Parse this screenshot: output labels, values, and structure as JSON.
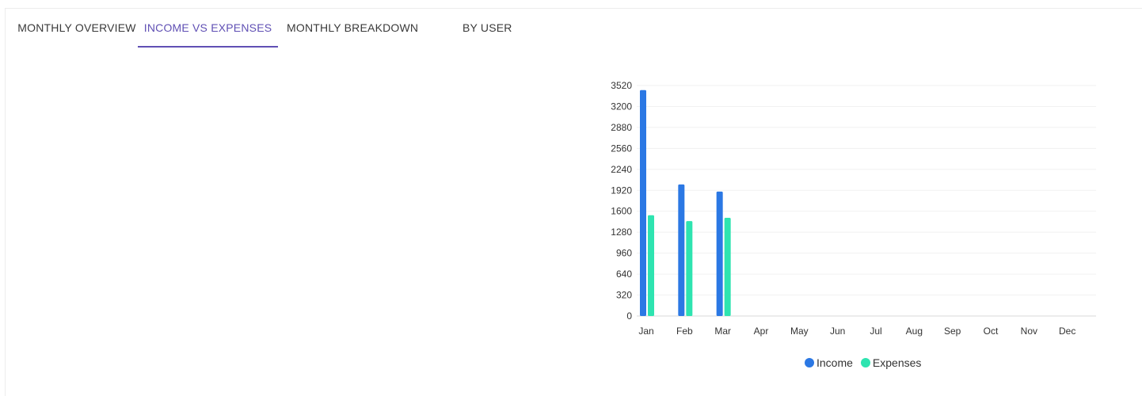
{
  "tabs": [
    {
      "label": "MONTHLY OVERVIEW",
      "active": false
    },
    {
      "label": "INCOME VS EXPENSES",
      "active": true
    },
    {
      "label": "MONTHLY BREAKDOWN",
      "active": false
    },
    {
      "label": "BY USER",
      "active": false
    }
  ],
  "colors": {
    "accent": "#6050b4",
    "income": "#2b78e4",
    "expenses": "#2ee4b0"
  },
  "chart_data": {
    "type": "bar",
    "categories": [
      "Jan",
      "Feb",
      "Mar",
      "Apr",
      "May",
      "Jun",
      "Jul",
      "Aug",
      "Sep",
      "Oct",
      "Nov",
      "Dec"
    ],
    "series": [
      {
        "name": "Income",
        "values": [
          3450,
          2010,
          1900,
          0,
          0,
          0,
          0,
          0,
          0,
          0,
          0,
          0
        ]
      },
      {
        "name": "Expenses",
        "values": [
          1540,
          1450,
          1500,
          0,
          0,
          0,
          0,
          0,
          0,
          0,
          0,
          0
        ]
      }
    ],
    "yticks": [
      "0",
      "320",
      "640",
      "960",
      "1280",
      "1600",
      "1920",
      "2240",
      "2560",
      "2880",
      "3200",
      "3520"
    ],
    "ylim": [
      0,
      3520
    ],
    "grid": true,
    "legend_position": "bottom"
  }
}
